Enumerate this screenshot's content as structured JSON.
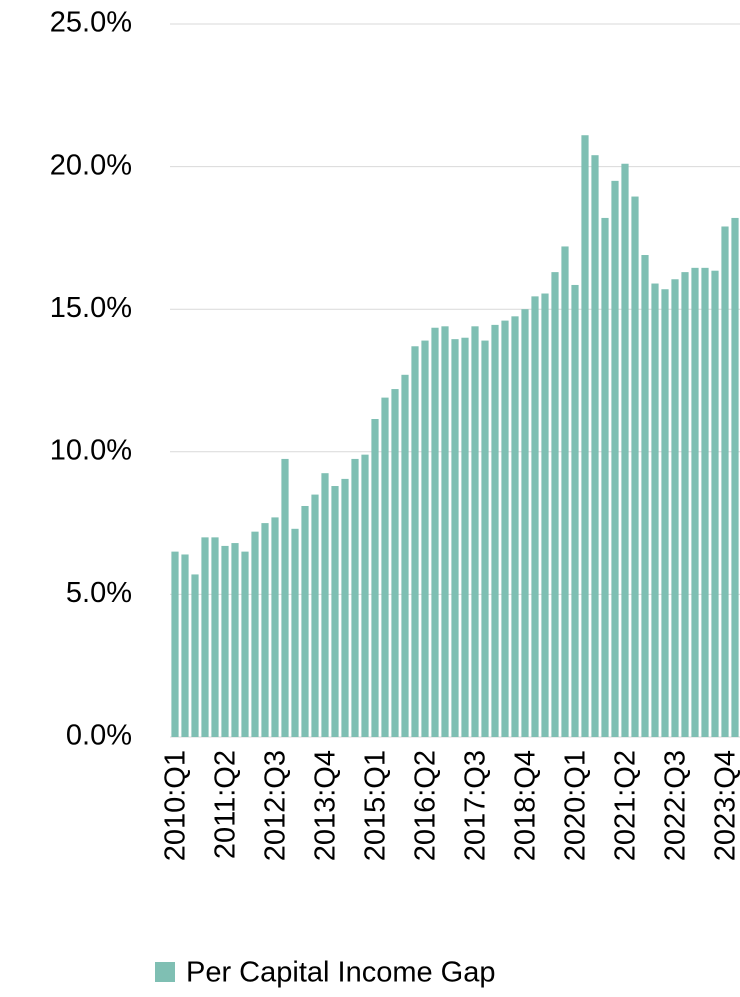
{
  "chart_data": {
    "type": "bar",
    "categories": [
      "2010:Q1",
      null,
      null,
      null,
      null,
      "2011:Q2",
      null,
      null,
      null,
      null,
      "2012:Q3",
      null,
      null,
      null,
      null,
      "2013:Q4",
      null,
      null,
      null,
      null,
      "2015:Q1",
      null,
      null,
      null,
      null,
      "2016:Q2",
      null,
      null,
      null,
      null,
      "2017:Q3",
      null,
      null,
      null,
      null,
      "2018:Q4",
      null,
      null,
      null,
      null,
      "2020:Q1",
      null,
      null,
      null,
      null,
      "2021:Q2",
      null,
      null,
      null,
      null,
      "2022:Q3",
      null,
      null,
      null,
      null,
      "2023:Q4",
      null
    ],
    "series": [
      {
        "name": "Per Capital Income Gap",
        "color": "#7fbfb3",
        "values": [
          6.5,
          6.4,
          5.7,
          7.0,
          7.0,
          6.7,
          6.8,
          6.5,
          7.2,
          7.5,
          7.7,
          9.75,
          7.3,
          8.1,
          8.5,
          9.25,
          8.8,
          9.05,
          9.75,
          9.9,
          11.15,
          11.9,
          12.2,
          12.7,
          13.7,
          13.9,
          14.35,
          14.4,
          13.95,
          14.0,
          14.4,
          13.9,
          14.45,
          14.6,
          14.75,
          15.0,
          15.45,
          15.55,
          16.3,
          17.2,
          15.85,
          21.1,
          20.4,
          18.2,
          19.5,
          20.1,
          18.95,
          16.9,
          15.9,
          15.7,
          16.05,
          16.3,
          16.45,
          16.45,
          16.35,
          17.9,
          18.2
        ]
      }
    ],
    "ylim": [
      0,
      25
    ],
    "yticks": [
      {
        "value": 0,
        "label": "0.0%"
      },
      {
        "value": 5,
        "label": "5.0%"
      },
      {
        "value": 10,
        "label": "10.0%"
      },
      {
        "value": 15,
        "label": "15.0%"
      },
      {
        "value": 20,
        "label": "20.0%"
      },
      {
        "value": 25,
        "label": "25.0%"
      }
    ],
    "grid": true
  }
}
